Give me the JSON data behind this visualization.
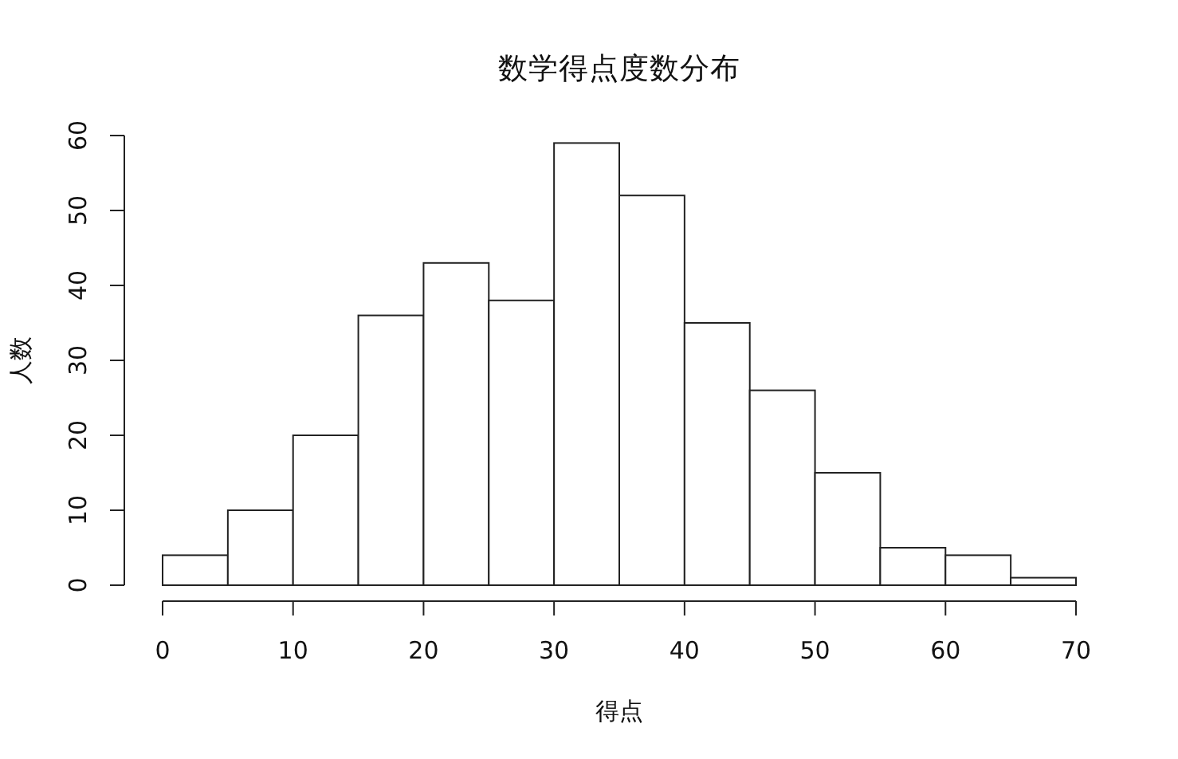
{
  "chart_data": {
    "type": "histogram",
    "title": "数学得点度数分布",
    "xlabel": "得点",
    "ylabel": "人数",
    "bins": [
      0,
      5,
      10,
      15,
      20,
      25,
      30,
      35,
      40,
      45,
      50,
      55,
      60,
      65,
      70
    ],
    "values": [
      4,
      10,
      20,
      36,
      43,
      38,
      59,
      52,
      35,
      26,
      15,
      5,
      4,
      1
    ],
    "color": "#ffffff",
    "xlim": [
      0,
      70
    ],
    "xticks": [
      0,
      10,
      20,
      30,
      40,
      50,
      60,
      70
    ],
    "ylim": [
      0,
      60
    ],
    "yticks": [
      0,
      10,
      20,
      30,
      40,
      50,
      60
    ]
  }
}
